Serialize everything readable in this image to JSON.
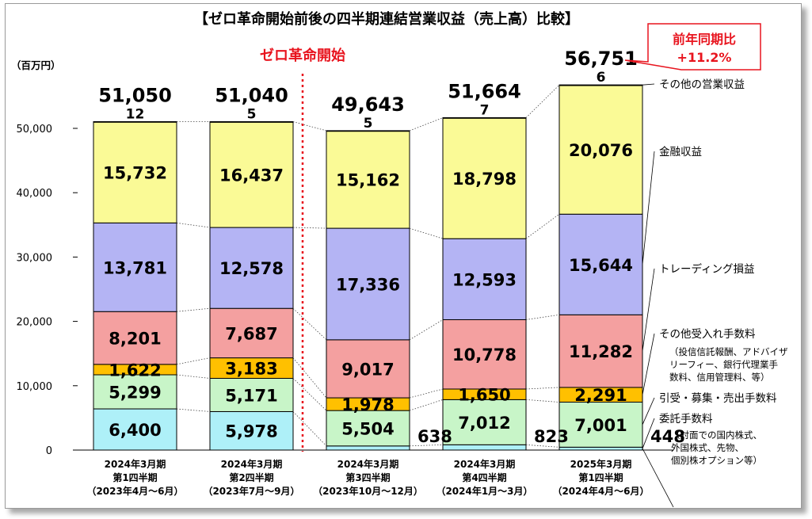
{
  "chart_data": {
    "type": "bar",
    "stacked": true,
    "title": "【ゼロ革命開始前後の四半期連結営業収益（売上高）比較】",
    "ylabel": "（百万円）",
    "ylim": [
      0,
      60000
    ],
    "yticks": [
      "0",
      "10,000",
      "20,000",
      "30,000",
      "40,000",
      "50,000"
    ],
    "ytick_values": [
      0,
      10000,
      20000,
      30000,
      40000,
      50000
    ],
    "categories": [
      [
        "2024年3月期",
        "第1四半期",
        "（2023年4月～6月）"
      ],
      [
        "2024年3月期",
        "第2四半期",
        "（2023年7月～9月）"
      ],
      [
        "2024年3月期",
        "第3四半期",
        "（2023年10月～12月）"
      ],
      [
        "2024年3月期",
        "第4四半期",
        "（2024年1月～3月）"
      ],
      [
        "2025年3月期",
        "第1四半期",
        "（2024年4月～6月）"
      ]
    ],
    "series": [
      {
        "name": "委託手数料",
        "sub": [
          "（対面での国内株式、",
          "外国株式、先物、",
          "個別株オプション等）"
        ],
        "color": "#aef0f8",
        "values": [
          6400,
          5978,
          638,
          823,
          448
        ],
        "labels": [
          "6,400",
          "5,978",
          "638",
          "823",
          "448"
        ]
      },
      {
        "name": "引受・募集・売出手数料",
        "sub": [],
        "color": "#c8f5c8",
        "values": [
          5299,
          5171,
          5504,
          7012,
          7001
        ],
        "labels": [
          "5,299",
          "5,171",
          "5,504",
          "7,012",
          "7,001"
        ]
      },
      {
        "name": "その他受入れ手数料",
        "sub": [],
        "color": "#ffc000",
        "values": [
          1622,
          3183,
          1978,
          1650,
          2291
        ],
        "labels": [
          "1,622",
          "3,183",
          "1,978",
          "1,650",
          "2,291"
        ]
      },
      {
        "name": "トレーディング損益",
        "sub": [
          "（投信信託報酬、アドバイザ",
          "リーフィー、銀行代理業手",
          "数料、信用管理料、等）"
        ],
        "color": "#f4a0a0",
        "values": [
          8201,
          7687,
          9017,
          10778,
          11282
        ],
        "labels": [
          "8,201",
          "7,687",
          "9,017",
          "10,778",
          "11,282"
        ]
      },
      {
        "name": "金融収益",
        "sub": [],
        "color": "#b4b4f4",
        "values": [
          13781,
          12578,
          17336,
          12593,
          15644
        ],
        "labels": [
          "13,781",
          "12,578",
          "17,336",
          "12,593",
          "15,644"
        ]
      },
      {
        "name": "その他の営業収益",
        "sub": [],
        "color": "#fafa96",
        "values": [
          15732,
          16437,
          15162,
          18798,
          20076
        ],
        "labels": [
          "15,732",
          "16,437",
          "15,162",
          "18,798",
          "20,076"
        ]
      },
      {
        "name": "",
        "sub": [],
        "color": "#ffffff",
        "values": [
          12,
          5,
          5,
          7,
          6
        ],
        "labels": [
          "12",
          "5",
          "5",
          "7",
          "6"
        ]
      }
    ],
    "legend_order_top_to_bottom": [
      "その他の営業収益",
      "金融収益",
      "トレーディング損益",
      "その他受入れ手数料",
      "引受・募集・売出手数料",
      "委託手数料"
    ],
    "totals": [
      "51,050",
      "51,040",
      "49,643",
      "51,664",
      "56,751"
    ],
    "total_values": [
      51050,
      51040,
      49643,
      51664,
      56751
    ],
    "annotations": {
      "start_marker": "ゼロ革命開始",
      "yoy_line1": "前年同期比",
      "yoy_line2": "+11.2%"
    },
    "colors": {
      "marker_red": "#e8141e",
      "grid": "#d9d9d9"
    }
  }
}
